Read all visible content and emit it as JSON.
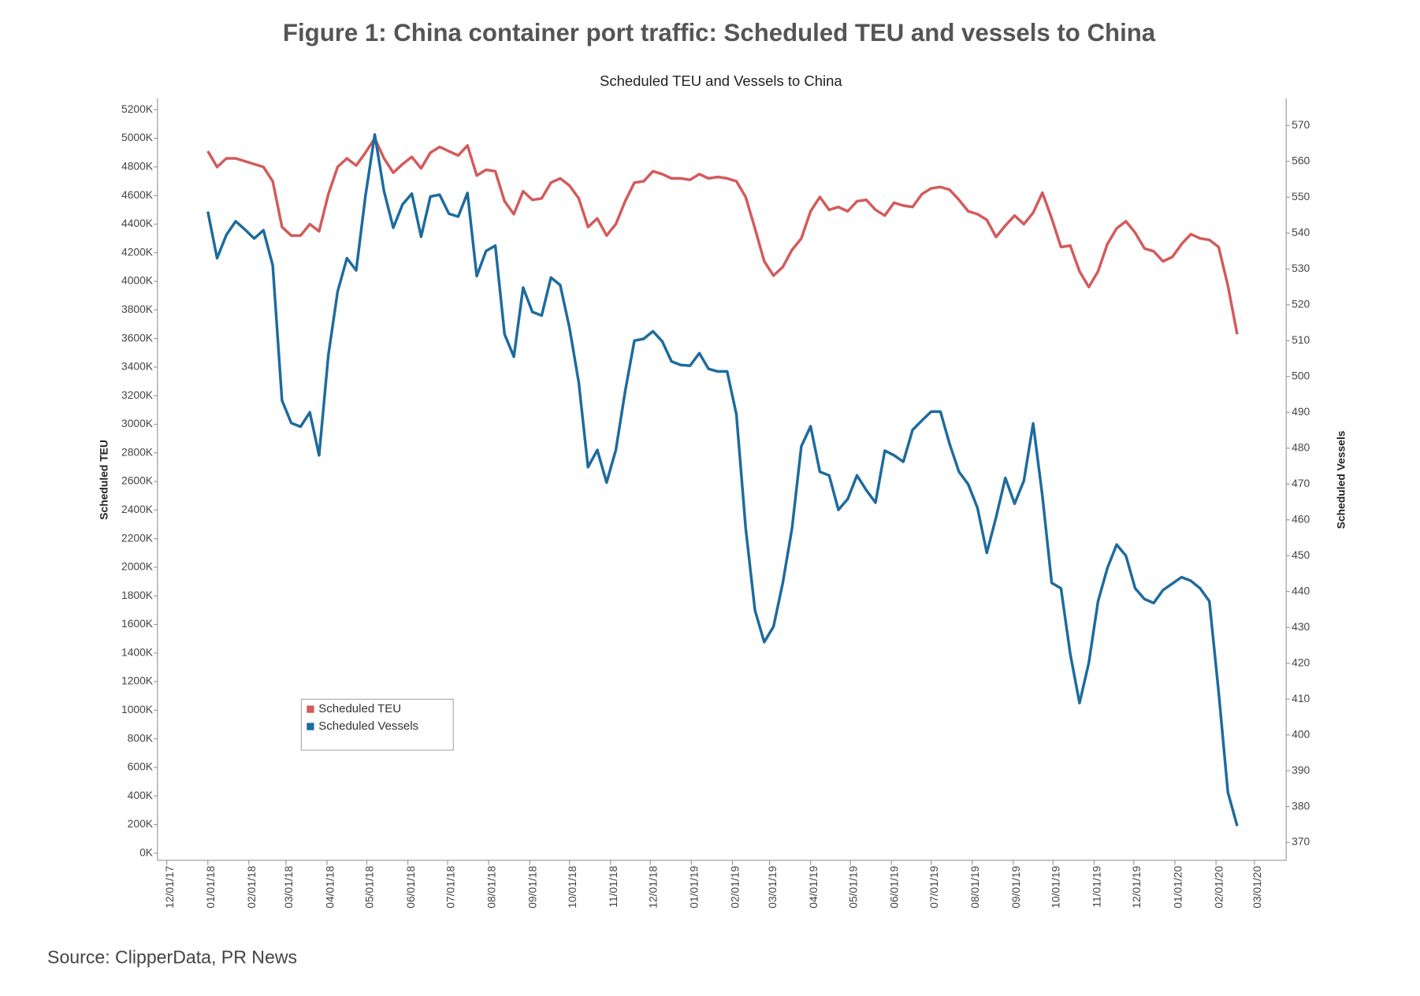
{
  "chart_data": {
    "type": "line",
    "figure_title": "Figure 1: China container port traffic: Scheduled TEU and vessels to China",
    "title": "Scheduled TEU and Vessels to China",
    "y_label": "Scheduled TEU",
    "y2_label": "Scheduled Vessels",
    "source": "Source: ClipperData, PR News",
    "legend_position": "lower left",
    "x": [
      "01/01/18",
      "01/08/18",
      "01/15/18",
      "01/22/18",
      "01/29/18",
      "02/05/18",
      "02/12/18",
      "02/19/18",
      "02/26/18",
      "03/05/18",
      "03/12/18",
      "03/19/18",
      "03/26/18",
      "04/02/18",
      "04/09/18",
      "04/16/18",
      "04/23/18",
      "04/30/18",
      "05/07/18",
      "05/14/18",
      "05/21/18",
      "05/28/18",
      "06/04/18",
      "06/11/18",
      "06/18/18",
      "06/25/18",
      "07/02/18",
      "07/09/18",
      "07/16/18",
      "07/23/18",
      "07/30/18",
      "08/06/18",
      "08/13/18",
      "08/20/18",
      "08/27/18",
      "09/03/18",
      "09/10/18",
      "09/17/18",
      "09/24/18",
      "10/01/18",
      "10/08/18",
      "10/15/18",
      "10/22/18",
      "10/29/18",
      "11/05/18",
      "11/12/18",
      "11/19/18",
      "11/26/18",
      "12/03/18",
      "12/10/18",
      "12/17/18",
      "12/24/18",
      "12/31/18",
      "01/07/19",
      "01/14/19",
      "01/21/19",
      "01/28/19",
      "02/04/19",
      "02/11/19",
      "02/18/19",
      "02/25/19",
      "03/04/19",
      "03/11/19",
      "03/18/19",
      "03/25/19",
      "04/01/19",
      "04/08/19",
      "04/15/19",
      "04/22/19",
      "04/29/19",
      "05/06/19",
      "05/13/19",
      "05/20/19",
      "05/27/19",
      "06/03/19",
      "06/10/19",
      "06/17/19",
      "06/24/19",
      "07/01/19",
      "07/08/19",
      "07/15/19",
      "07/22/19",
      "07/29/19",
      "08/05/19",
      "08/12/19",
      "08/19/19",
      "08/26/19",
      "09/02/19",
      "09/09/19",
      "09/16/19",
      "09/23/19",
      "09/30/19",
      "10/07/19",
      "10/14/19",
      "10/21/19",
      "10/28/19",
      "11/04/19",
      "11/11/19",
      "11/18/19",
      "11/25/19",
      "12/02/19",
      "12/09/19",
      "12/16/19",
      "12/23/19",
      "12/30/19",
      "01/06/20",
      "01/13/20",
      "01/20/20",
      "01/27/20",
      "02/03/20",
      "02/10/20",
      "02/17/20"
    ],
    "series": [
      {
        "name": "Scheduled TEU",
        "color": "#d45a5a",
        "axis": "y",
        "values": [
          4910,
          4800,
          4860,
          4860,
          4840,
          4820,
          4800,
          4700,
          4380,
          4320,
          4320,
          4400,
          4350,
          4610,
          4800,
          4860,
          4810,
          4900,
          5000,
          4860,
          4760,
          4820,
          4870,
          4790,
          4900,
          4940,
          4910,
          4880,
          4950,
          4740,
          4780,
          4770,
          4560,
          4470,
          4630,
          4570,
          4580,
          4690,
          4720,
          4670,
          4580,
          4380,
          4440,
          4320,
          4400,
          4560,
          4690,
          4700,
          4770,
          4750,
          4720,
          4720,
          4710,
          4750,
          4720,
          4730,
          4720,
          4700,
          4590,
          4370,
          4140,
          4040,
          4100,
          4220,
          4300,
          4490,
          4590,
          4500,
          4520,
          4490,
          4560,
          4570,
          4500,
          4460,
          4550,
          4530,
          4520,
          4610,
          4650,
          4660,
          4640,
          4570,
          4490,
          4470,
          4430,
          4310,
          4390,
          4460,
          4400,
          4480,
          4620,
          4440,
          4240,
          4250,
          4070,
          3960,
          4070,
          4260,
          4370,
          4420,
          4340,
          4230,
          4210,
          4140,
          4170,
          4260,
          4330,
          4300,
          4290,
          4240,
          3970,
          3630
        ]
      },
      {
        "name": "Scheduled Vessels",
        "color": "#1d6b9e",
        "axis": "y2",
        "values": [
          546,
          533,
          539.5,
          543.3,
          541,
          538.5,
          540.8,
          531,
          493.3,
          487,
          486,
          490,
          478,
          506,
          523.7,
          533,
          529.6,
          550.4,
          567.5,
          551.7,
          541.5,
          548,
          551,
          539,
          550.2,
          550.7,
          545.4,
          544.6,
          551.2,
          528,
          535,
          536.5,
          511.8,
          505.5,
          524.8,
          518,
          517,
          527.6,
          525.5,
          513.6,
          498.3,
          474.7,
          479.5,
          470.4,
          479.5,
          495.8,
          510,
          510.5,
          512.6,
          509.8,
          504.2,
          503.2,
          503,
          506.5,
          502.1,
          501.4,
          501.4,
          489.4,
          457.7,
          434.8,
          425.9,
          430.2,
          442.4,
          457.7,
          480.5,
          486.1,
          473.4,
          472.4,
          462.8,
          465.8,
          472.4,
          468.3,
          464.8,
          479.3,
          478,
          476.2,
          485.1,
          487.7,
          490.2,
          490.2,
          481.1,
          473.4,
          469.9,
          463.3,
          450.8,
          460.7,
          471.7,
          464.5,
          470.9,
          486.9,
          466.6,
          442.4,
          440.9,
          422.6,
          408.9,
          420.1,
          437.3,
          446.5,
          453.1,
          450,
          440.9,
          437.9,
          436.8,
          440.4,
          442.2,
          444,
          443,
          440.9,
          437.3,
          412,
          384,
          374.6
        ]
      }
    ],
    "xlim": [
      "11/24/17",
      "03/25/20"
    ],
    "xticks": [
      "12/01/17",
      "01/01/18",
      "02/01/18",
      "03/01/18",
      "04/01/18",
      "05/01/18",
      "06/01/18",
      "07/01/18",
      "08/01/18",
      "09/01/18",
      "10/01/18",
      "11/01/18",
      "12/01/18",
      "01/01/19",
      "02/01/19",
      "03/01/19",
      "04/01/19",
      "05/01/19",
      "06/01/19",
      "07/01/19",
      "08/01/19",
      "09/01/19",
      "10/01/19",
      "11/01/19",
      "12/01/19",
      "01/01/20",
      "02/01/20",
      "03/01/20"
    ],
    "ylim": [
      -50,
      5280
    ],
    "yticks": [
      {
        "value": 0,
        "label": "0K"
      },
      {
        "value": 200,
        "label": "200K"
      },
      {
        "value": 400,
        "label": "400K"
      },
      {
        "value": 600,
        "label": "600K"
      },
      {
        "value": 800,
        "label": "800K"
      },
      {
        "value": 1000,
        "label": "1000K"
      },
      {
        "value": 1200,
        "label": "1200K"
      },
      {
        "value": 1400,
        "label": "1400K"
      },
      {
        "value": 1600,
        "label": "1600K"
      },
      {
        "value": 1800,
        "label": "1800K"
      },
      {
        "value": 2000,
        "label": "2000K"
      },
      {
        "value": 2200,
        "label": "2200K"
      },
      {
        "value": 2400,
        "label": "2400K"
      },
      {
        "value": 2600,
        "label": "2600K"
      },
      {
        "value": 2800,
        "label": "2800K"
      },
      {
        "value": 3000,
        "label": "3000K"
      },
      {
        "value": 3200,
        "label": "3200K"
      },
      {
        "value": 3400,
        "label": "3400K"
      },
      {
        "value": 3600,
        "label": "3600K"
      },
      {
        "value": 3800,
        "label": "3800K"
      },
      {
        "value": 4000,
        "label": "4000K"
      },
      {
        "value": 4200,
        "label": "4200K"
      },
      {
        "value": 4400,
        "label": "4400K"
      },
      {
        "value": 4600,
        "label": "4600K"
      },
      {
        "value": 4800,
        "label": "4800K"
      },
      {
        "value": 5000,
        "label": "5000K"
      },
      {
        "value": 5200,
        "label": "5200K"
      }
    ],
    "y2lim": [
      365,
      577.6
    ],
    "y2ticks": [
      370,
      380,
      390,
      400,
      410,
      420,
      430,
      440,
      450,
      460,
      470,
      480,
      490,
      500,
      510,
      520,
      530,
      540,
      550,
      560,
      570
    ]
  }
}
